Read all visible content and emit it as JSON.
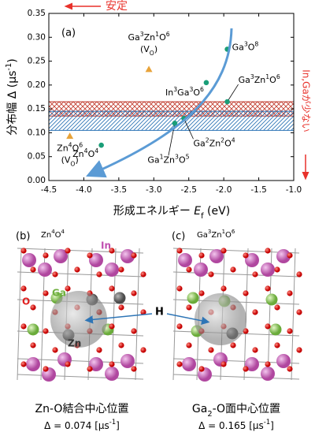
{
  "chart_data": {
    "type": "scatter",
    "xlabel": "形成エネルギー Ef (eV)",
    "ylabel": "分布幅 Δ (μs-1)",
    "panel_label": "(a)",
    "annotation_top": "安定",
    "annotation_right": "In,Gaが少ない",
    "xlim": [
      -4.5,
      -1.0
    ],
    "xticks": [
      -4.5,
      {
        "value": -4.0,
        "label": "-4.0"
      },
      -3.5,
      {
        "value": -3.0,
        "label": "-3.0"
      },
      -2.5,
      {
        "value": -2.0,
        "label": "-2.0"
      },
      -1.5,
      {
        "value": -1.0,
        "label": "-1.0"
      }
    ],
    "ylim": [
      0.0,
      0.35
    ],
    "yticks": [
      {
        "value": 0.0,
        "label": "0.00"
      },
      0.05,
      {
        "value": 0.1,
        "label": "0.10"
      },
      0.15,
      {
        "value": 0.2,
        "label": "0.20"
      },
      0.25,
      {
        "value": 0.3,
        "label": "0.30"
      },
      0.35
    ],
    "grid": false,
    "bands": [
      {
        "color": "#c0392b",
        "range": [
          0.135,
          0.165
        ]
      },
      {
        "color": "#2e75b6",
        "range": [
          0.105,
          0.145
        ]
      }
    ],
    "series": [
      {
        "marker": "circle",
        "color": "#1a9e78",
        "x": [
          -1.95,
          -2.25,
          -1.95,
          -2.57,
          -2.7,
          -3.75
        ],
        "values": [
          0.275,
          0.205,
          0.165,
          0.13,
          0.12,
          0.074
        ],
        "labels": [
          "Ga3O8",
          "In3Ga3O6",
          "Ga3Zn1O6",
          "Ga2Zn2O4",
          "Ga1Zn3O5",
          "Zn4O4"
        ]
      },
      {
        "marker": "triangle",
        "color": "#e8a33a",
        "x": [
          -3.07,
          -4.2
        ],
        "values": [
          0.233,
          0.093
        ],
        "labels": [
          "Ga3Zn1O6",
          "Zn4O6"
        ],
        "sublabels": [
          "(VO)",
          "(VO)"
        ]
      }
    ]
  },
  "structures": {
    "atoms": {
      "In": "In",
      "Ga": "Ga",
      "O": "O",
      "Zn": "Zn",
      "H": "H"
    },
    "panels": [
      {
        "label": "(b)",
        "formula": "Zn4O4",
        "caption": "Zn-O結合中心位置",
        "delta": "Δ = 0.074 [μs-1]"
      },
      {
        "label": "(c)",
        "formula": "Ga3Zn1O6",
        "caption": "Ga2-O面中心位置",
        "delta": "Δ = 0.165 [μs-1]"
      }
    ]
  }
}
